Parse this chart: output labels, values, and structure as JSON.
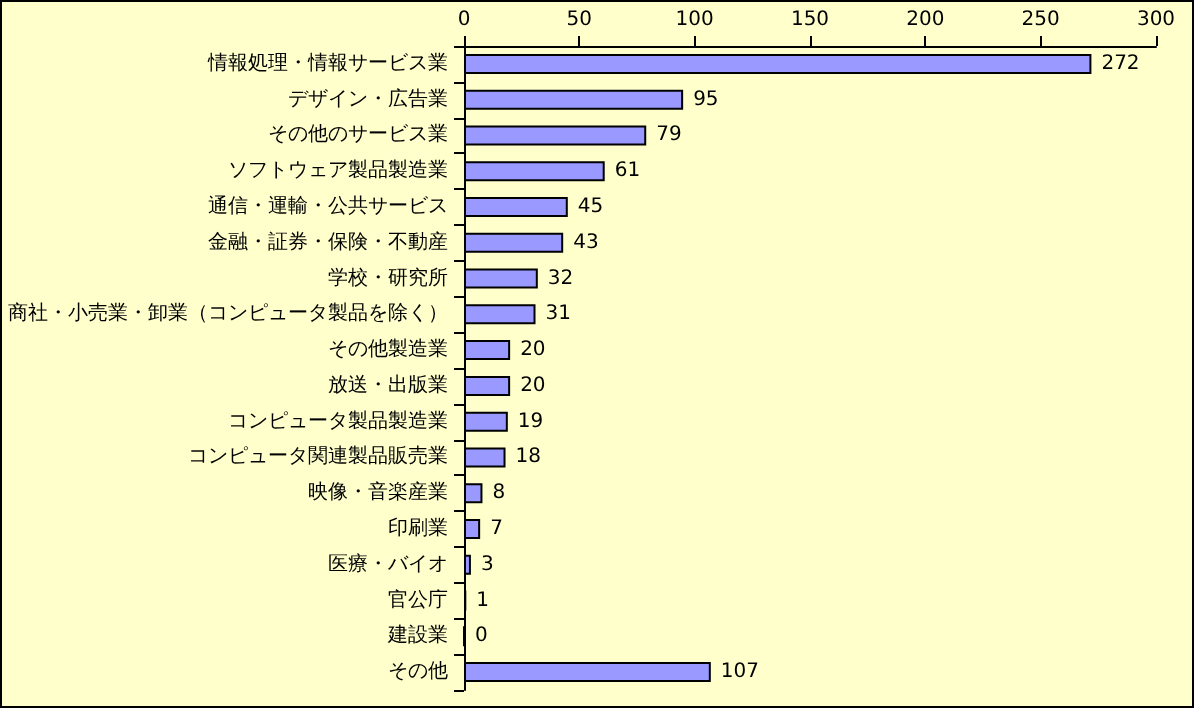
{
  "chart_data": {
    "type": "bar",
    "orientation": "horizontal",
    "categories": [
      "情報処理・情報サービス業",
      "デザイン・広告業",
      "その他のサービス業",
      "ソフトウェア製品製造業",
      "通信・運輸・公共サービス",
      "金融・証券・保険・不動産",
      "学校・研究所",
      "商社・小売業・卸業（コンピュータ製品を除く）",
      "その他製造業",
      "放送・出版業",
      "コンピュータ製品製造業",
      "コンピュータ関連製品販売業",
      "映像・音楽産業",
      "印刷業",
      "医療・バイオ",
      "官公庁",
      "建設業",
      "その他"
    ],
    "values": [
      272,
      95,
      79,
      61,
      45,
      43,
      32,
      31,
      20,
      20,
      19,
      18,
      8,
      7,
      3,
      1,
      0,
      107
    ],
    "color": "#9999ff",
    "xlim": [
      0,
      300
    ],
    "xticks": [
      0,
      50,
      100,
      150,
      200,
      250,
      300
    ],
    "data_labels": true
  }
}
